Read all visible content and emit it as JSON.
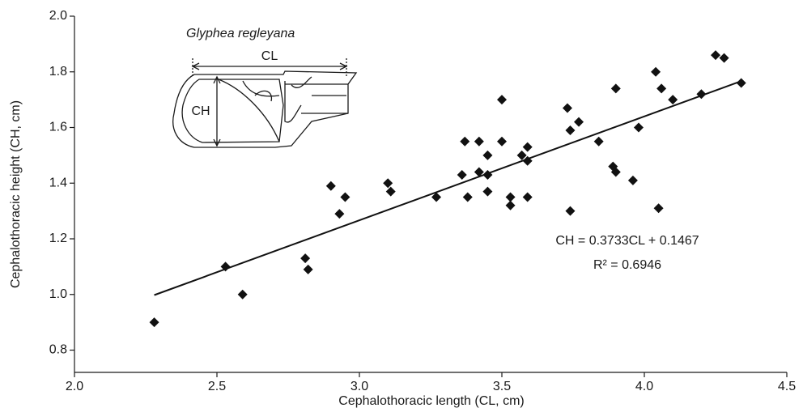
{
  "chart_data": {
    "type": "scatter",
    "xlabel": "Cephalothoracic length (CL, cm)",
    "ylabel": "Cephalothoracic height (CH, cm)",
    "xlim": [
      2.0,
      4.5
    ],
    "xticks": [
      {
        "value": 2,
        "label": "2.0"
      },
      2.5,
      {
        "value": 3,
        "label": "3.0"
      },
      3.5,
      {
        "value": 4,
        "label": "4.0"
      },
      4.5
    ],
    "ylim": [
      0.72,
      2.0
    ],
    "yticks": [
      0.8,
      {
        "value": 1,
        "label": "1.0"
      },
      1.2,
      1.4,
      1.6,
      1.8,
      {
        "value": 2,
        "label": "2.0"
      }
    ],
    "color": "#111111",
    "x": [
      2.28,
      2.53,
      2.59,
      2.81,
      2.82,
      2.9,
      2.93,
      2.95,
      3.1,
      3.11,
      3.27,
      3.36,
      3.37,
      3.38,
      3.42,
      3.42,
      3.45,
      3.45,
      3.45,
      3.5,
      3.5,
      3.53,
      3.53,
      3.57,
      3.59,
      3.59,
      3.59,
      3.73,
      3.74,
      3.74,
      3.77,
      3.84,
      3.89,
      3.9,
      3.9,
      3.96,
      3.98,
      4.04,
      4.05,
      4.06,
      4.1,
      4.2,
      4.25,
      4.28,
      4.34
    ],
    "values": [
      0.9,
      1.1,
      1.0,
      1.13,
      1.09,
      1.39,
      1.29,
      1.35,
      1.4,
      1.37,
      1.35,
      1.43,
      1.55,
      1.35,
      1.55,
      1.44,
      1.5,
      1.43,
      1.37,
      1.7,
      1.55,
      1.35,
      1.32,
      1.5,
      1.53,
      1.48,
      1.35,
      1.67,
      1.59,
      1.3,
      1.62,
      1.55,
      1.46,
      1.74,
      1.44,
      1.41,
      1.6,
      1.8,
      1.31,
      1.74,
      1.7,
      1.72,
      1.86,
      1.85,
      1.76
    ],
    "trendline": {
      "slope": 0.3733,
      "intercept": 0.1467
    },
    "annotations": [
      "CH = 0.3733CL + 0.1467",
      "R² = 0.6946"
    ],
    "inset": {
      "title": "Glyphea regleyana",
      "length_label": "CL",
      "height_label": "CH"
    }
  }
}
